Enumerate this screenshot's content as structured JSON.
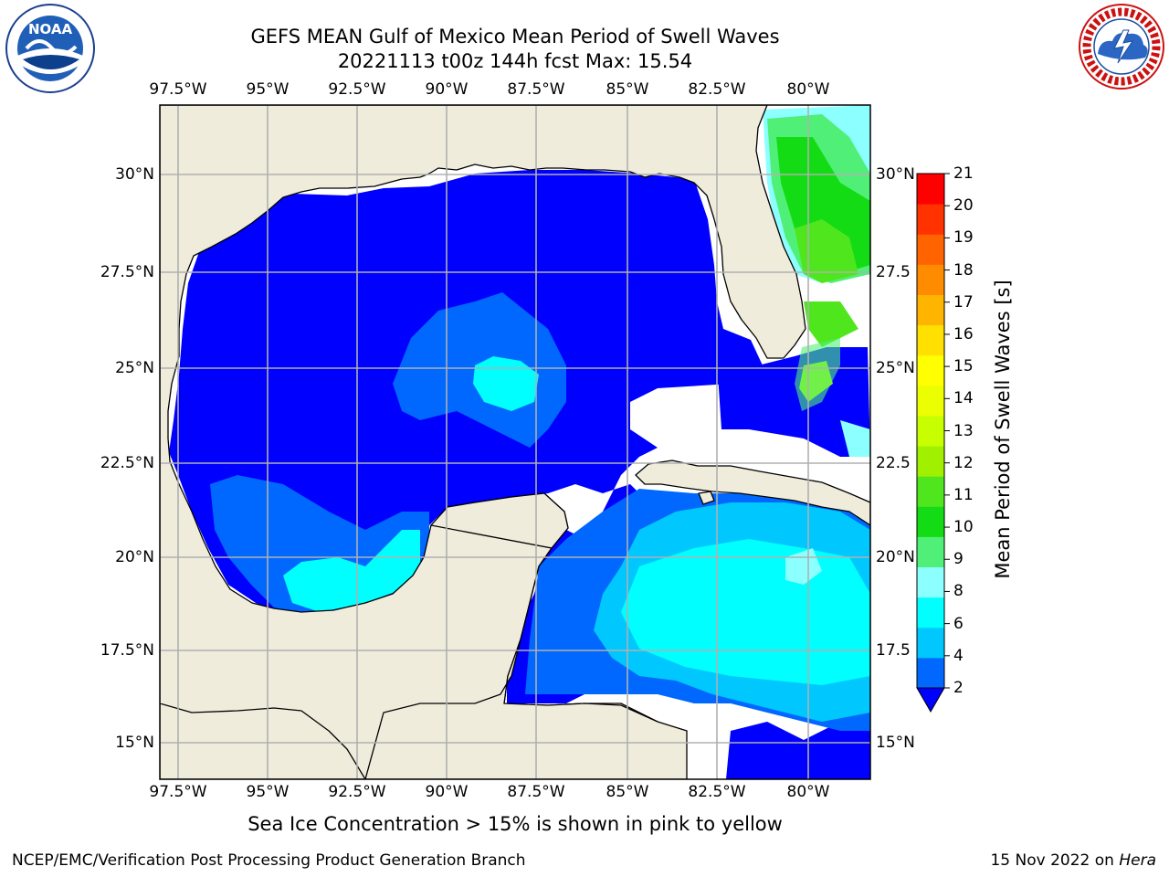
{
  "header": {
    "title_line1": "GEFS MEAN Gulf of Mexico Mean Period of Swell Waves",
    "title_line2": "20221113 t00z 144h fcst   Max: 15.54"
  },
  "logos": {
    "left_logo_text": "NOAA",
    "left_logo_icon": "noaa-logo",
    "right_logo_icon": "national-weather-service-logo"
  },
  "map": {
    "lon_ticks": [
      "97.5°W",
      "95°W",
      "92.5°W",
      "90°W",
      "87.5°W",
      "85°W",
      "82.5°W",
      "80°W"
    ],
    "lat_ticks_left": [
      "30°N",
      "27.5°N",
      "25°N",
      "22.5°N",
      "20°N",
      "17.5°N",
      "15°N"
    ],
    "lat_ticks_right": [
      "30°N",
      "27.5",
      "25°N",
      "22.5",
      "20°N",
      "17.5",
      "15°N"
    ],
    "land_color": "#efecdc",
    "background_color": "#ffffff",
    "grid": true
  },
  "colorbar": {
    "label": "Mean Period of Swell Waves [s]",
    "ticks": [
      "21",
      "20",
      "19",
      "18",
      "17",
      "16",
      "15",
      "14",
      "13",
      "12",
      "11",
      "10",
      "9",
      "8",
      "6",
      "4",
      "2"
    ],
    "colors": [
      "#0000ff",
      "#0068ff",
      "#00c8ff",
      "#00ffff",
      "#8cffff",
      "#50f078",
      "#14dc14",
      "#50e61e",
      "#a0f000",
      "#c8ff00",
      "#ecff00",
      "#ffff00",
      "#ffe000",
      "#ffb400",
      "#ff8c00",
      "#ff6400",
      "#ff3200",
      "#ff0000"
    ],
    "extend": "min"
  },
  "captions": {
    "sea_ice_note": "Sea Ice Concentration > 15% is shown in pink to yellow",
    "footer_left": "NCEP/EMC/Verification Post Processing Product Generation Branch",
    "footer_date": "15 Nov 2022 on ",
    "footer_machine": "Hera"
  }
}
